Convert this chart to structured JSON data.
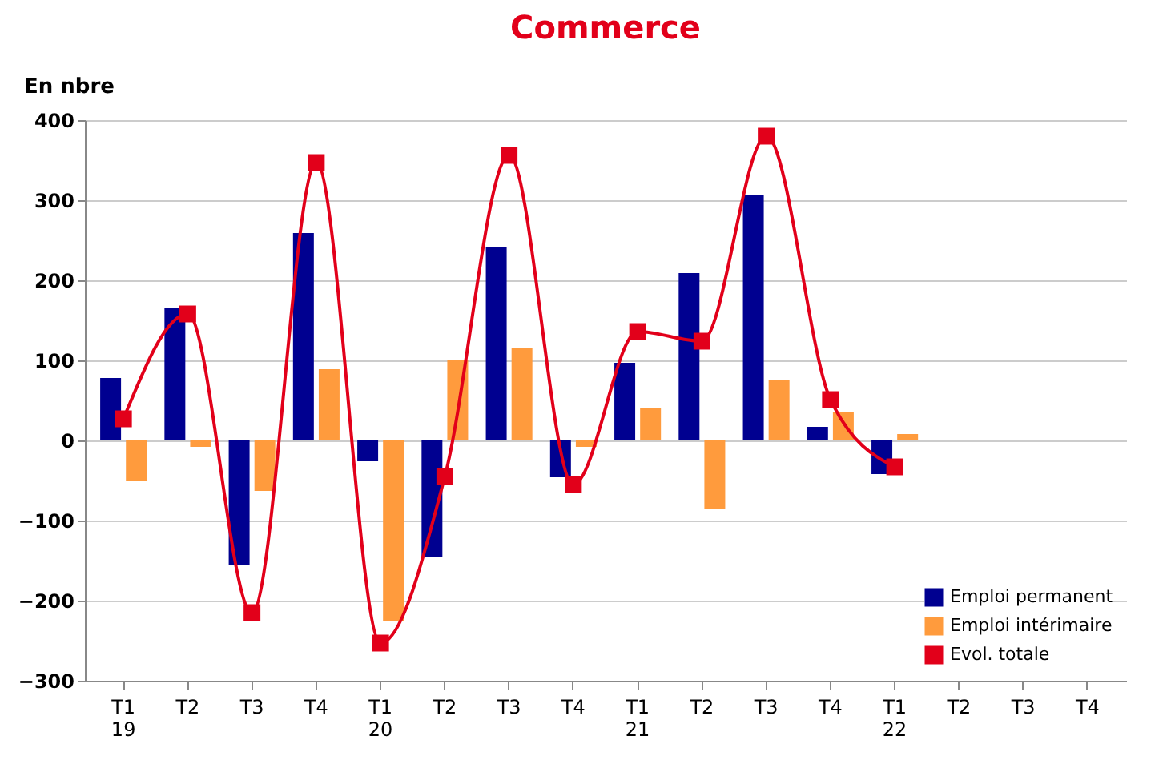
{
  "chart_data": {
    "type": "bar",
    "title": "Commerce",
    "ylabel": "En nbre",
    "categories": [
      "T1\n19",
      "T2",
      "T3",
      "T4",
      "T1\n20",
      "T2",
      "T3",
      "T4",
      "T1\n21",
      "T2",
      "T3",
      "T4",
      "T1\n22",
      "T2",
      "T3",
      "T4"
    ],
    "series": [
      {
        "name": "Emploi permanent",
        "color": "#000090",
        "values": [
          78,
          165,
          -155,
          259,
          -26,
          -145,
          241,
          -46,
          97,
          209,
          306,
          17,
          -42,
          null,
          null,
          null
        ]
      },
      {
        "name": "Emploi intérimaire",
        "color": "#ff9b3d",
        "values": [
          -50,
          -8,
          -63,
          89,
          -226,
          100,
          116,
          -8,
          40,
          -86,
          75,
          36,
          8,
          null,
          null,
          null
        ]
      },
      {
        "name": "Evol. totale",
        "type": "line",
        "color": "#e2001a",
        "marker": "square",
        "line_style": "solid",
        "values": [
          27,
          158,
          -215,
          347,
          -253,
          -45,
          356,
          -55,
          136,
          124,
          380,
          51,
          -33,
          null,
          null,
          null
        ]
      }
    ],
    "ylim": [
      -300,
      400
    ],
    "yticks": [
      -300,
      -200,
      -100,
      0,
      100,
      200,
      300,
      400
    ],
    "grid": "y",
    "legend": "bottom right"
  }
}
